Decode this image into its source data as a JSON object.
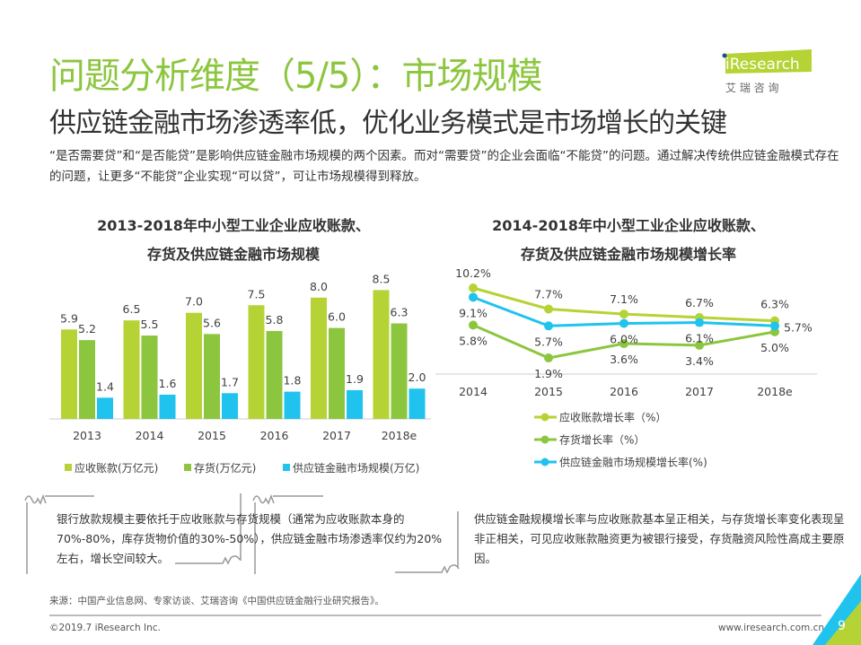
{
  "header": {
    "title": "问题分析维度（5/5）：市场规模",
    "subtitle": "供应链金融市场渗透率低，优化业务模式是市场增长的关键",
    "intro": "“是否需要贷”和“是否能贷”是影响供应链金融市场规模的两个因素。而对“需要贷”的企业会面临“不能贷”的问题。通过解决传统供应链金融模式存在的问题，让更多“不能贷”企业实现“可以贷”，可让市场规模得到释放。"
  },
  "logo": {
    "brand": "iResearch",
    "cn": "艾 瑞 咨 询"
  },
  "colors": {
    "receivables": "#b5d334",
    "inventory": "#8cc63f",
    "scf": "#1fc3ee"
  },
  "chart_data": [
    {
      "type": "bar",
      "title_line1": "2013-2018年中小型工业企业应收账款、",
      "title_line2": "存货及供应链金融市场规模",
      "categories": [
        "2013",
        "2014",
        "2015",
        "2016",
        "2017",
        "2018e"
      ],
      "series": [
        {
          "name": "应收账款(万亿元)",
          "values": [
            5.9,
            6.5,
            7.0,
            7.5,
            8.0,
            8.5
          ]
        },
        {
          "name": "存货(万亿元)",
          "values": [
            5.2,
            5.5,
            5.6,
            5.8,
            6.0,
            6.3
          ]
        },
        {
          "name": "供应链金融市场规模(万亿)",
          "values": [
            1.4,
            1.6,
            1.7,
            1.8,
            1.9,
            2.0
          ]
        }
      ],
      "ylim": [
        0,
        9
      ],
      "legend": "bottom"
    },
    {
      "type": "line",
      "title_line1": "2014-2018年中小型工业企业应收账款、",
      "title_line2": "存货及供应链金融市场规模增长率",
      "categories": [
        "2014",
        "2015",
        "2016",
        "2017",
        "2018e"
      ],
      "series": [
        {
          "name": "应收账款增长率（%）",
          "values": [
            10.2,
            7.7,
            7.1,
            6.7,
            6.3
          ],
          "labels": [
            "10.2%",
            "7.7%",
            "7.1%",
            "6.7%",
            "6.3%"
          ]
        },
        {
          "name": "存货增长率（%）",
          "values": [
            5.8,
            1.9,
            3.6,
            3.4,
            5.0
          ],
          "labels": [
            "5.8%",
            "1.9%",
            "3.6%",
            "3.4%",
            "5.0%"
          ]
        },
        {
          "name": "供应链金融市场规模增长率(%)",
          "values": [
            9.1,
            5.7,
            6.0,
            6.1,
            5.7
          ],
          "labels": [
            "9.1%",
            "5.7%",
            "6.0%",
            "6.1%",
            "5.7%"
          ]
        }
      ],
      "legend": "bottom"
    }
  ],
  "notes": [
    "银行放款规模主要依托于应收账款与存货规模（通常为应收账款本身的70%-80%，库存货物价值的30%-50%），供应链金融市场渗透率仅约为20%左右，增长空间较大。",
    "供应链金融规模增长率与应收账款基本呈正相关，与存货增长率变化表现呈非正相关，可见应收账款融资更为被银行接受，存货融资风险性高成主要原因。"
  ],
  "footer": {
    "source": "来源：中国产业信息网、专家访谈、艾瑞咨询《中国供应链金融行业研究报告》。",
    "copyright": "©2019.7 iResearch Inc.",
    "url": "www.iresearch.com.cn",
    "page": "9"
  }
}
